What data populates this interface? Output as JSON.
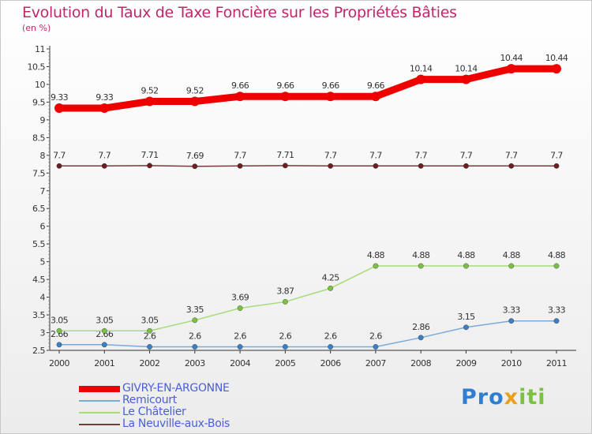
{
  "header": {
    "title": "Evolution du Taux de Taxe Foncière sur les Propriétés Bâties",
    "subtitle": "(en %)"
  },
  "logo": {
    "part1": "Pro",
    "part2": "x",
    "part3": "iti"
  },
  "chart_data": {
    "type": "line",
    "title": "Evolution du Taux de Taxe Foncière sur les Propriétés Bâties",
    "ylabel": "(en %)",
    "xlabel": "",
    "ylim": [
      2.5,
      11
    ],
    "yticks": [
      "2.5",
      "3",
      "3.5",
      "4",
      "4.5",
      "5",
      "5.5",
      "6",
      "6.5",
      "7",
      "7.5",
      "8",
      "8.5",
      "9",
      "9.5",
      "10",
      "10.5",
      "11"
    ],
    "categories": [
      "2000",
      "2001",
      "2002",
      "2003",
      "2004",
      "2005",
      "2006",
      "2007",
      "2008",
      "2009",
      "2010",
      "2011"
    ],
    "series": [
      {
        "name": "GIVRY-EN-ARGONNE",
        "color": "#ee0000",
        "width": 9,
        "values": [
          9.33,
          9.33,
          9.52,
          9.52,
          9.66,
          9.66,
          9.66,
          9.66,
          10.14,
          10.14,
          10.44,
          10.44
        ],
        "labels": [
          "9.33",
          "9.33",
          "9.52",
          "9.52",
          "9.66",
          "9.66",
          "9.66",
          "9.66",
          "10.14",
          "10.14",
          "10.44",
          "10.44"
        ]
      },
      {
        "name": "Remicourt",
        "color": "#7aaad8",
        "width": 1.5,
        "values": [
          2.66,
          2.66,
          2.6,
          2.6,
          2.6,
          2.6,
          2.6,
          2.6,
          2.86,
          3.15,
          3.33,
          3.33
        ],
        "labels": [
          "2.66",
          "2.66",
          "2.6",
          "2.6",
          "2.6",
          "2.6",
          "2.6",
          "2.6",
          "2.86",
          "3.15",
          "3.33",
          "3.33"
        ]
      },
      {
        "name": "Le Châtelier",
        "color": "#a6dc7a",
        "width": 1.5,
        "values": [
          3.05,
          3.05,
          3.05,
          3.35,
          3.69,
          3.87,
          4.25,
          4.88,
          4.88,
          4.88,
          4.88,
          4.88
        ],
        "labels": [
          "3.05",
          "3.05",
          "3.05",
          "3.35",
          "3.69",
          "3.87",
          "4.25",
          "4.88",
          "4.88",
          "4.88",
          "4.88",
          "4.88"
        ]
      },
      {
        "name": "La Neuville-aux-Bois",
        "color": "#7a3a3a",
        "width": 1.5,
        "values": [
          7.7,
          7.7,
          7.71,
          7.69,
          7.7,
          7.71,
          7.7,
          7.7,
          7.7,
          7.7,
          7.7,
          7.7
        ],
        "labels": [
          "7.7",
          "7.7",
          "7.71",
          "7.69",
          "7.7",
          "7.71",
          "7.7",
          "7.7",
          "7.7",
          "7.7",
          "7.7",
          "7.7"
        ]
      }
    ],
    "legend_position": "bottom-left",
    "grid": false
  }
}
